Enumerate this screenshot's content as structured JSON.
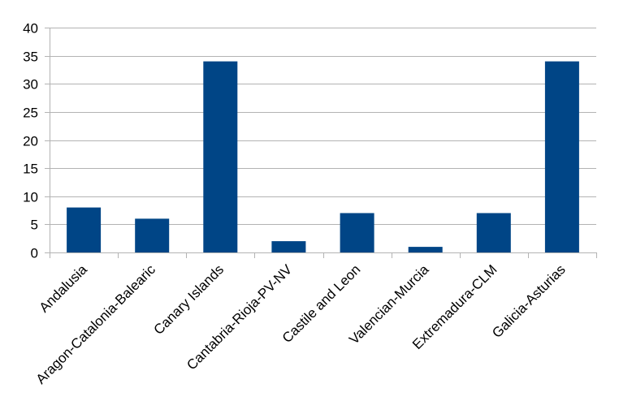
{
  "chart_data": {
    "type": "bar",
    "categories": [
      "Andalusia",
      "Aragon-Catalonia-Balearic",
      "Canary Islands",
      "Cantabria-Rioja-PV-NV",
      "Castile and Leon",
      "Valencian-Murcia",
      "Extremadura-CLM",
      "Galicia-Asturias"
    ],
    "values": [
      8,
      6,
      34,
      2,
      7,
      1,
      7,
      34
    ],
    "title": "",
    "xlabel": "",
    "ylabel": "",
    "ylim": [
      0,
      40
    ],
    "yticks": [
      "0",
      "5",
      "10",
      "15",
      "20",
      "25",
      "30",
      "35",
      "40"
    ],
    "grid": true,
    "legend": "none",
    "bar_color": "#004586"
  }
}
